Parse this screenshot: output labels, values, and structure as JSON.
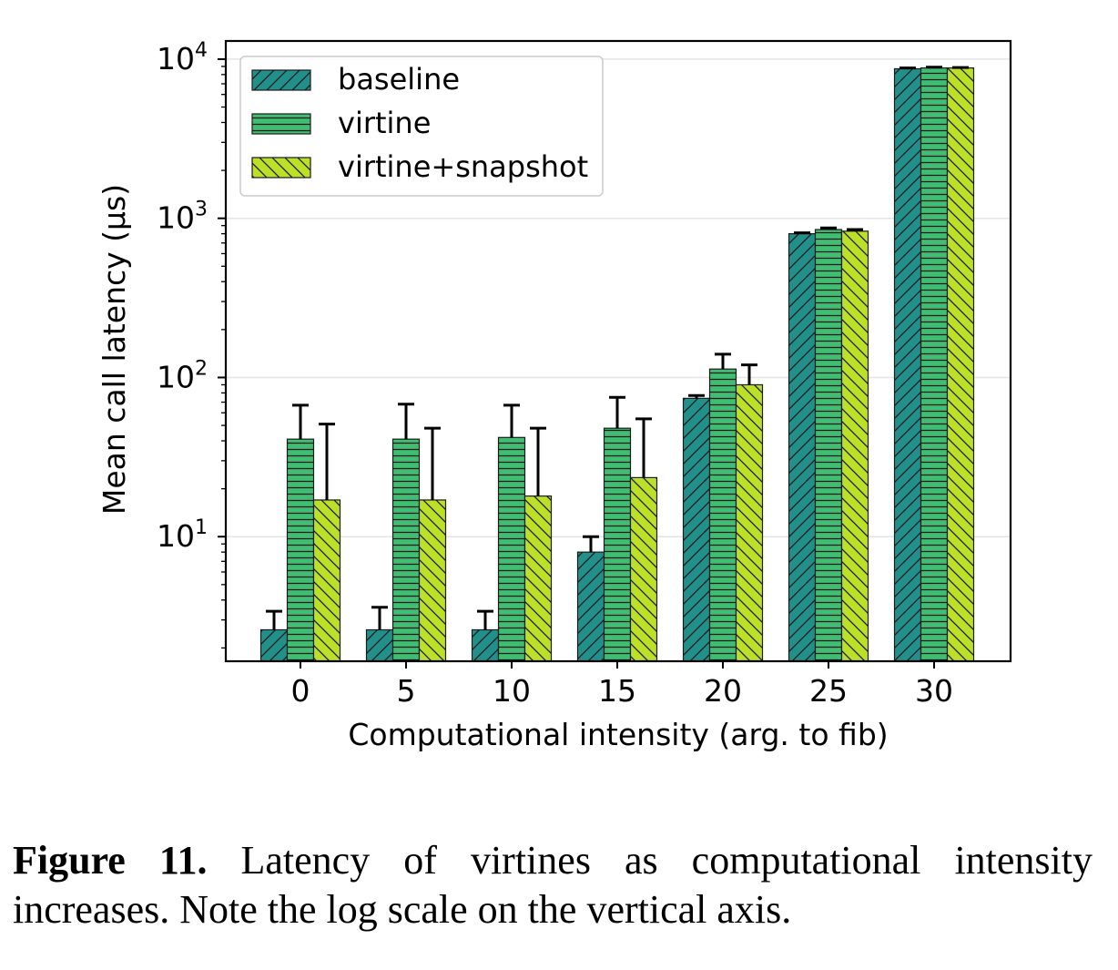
{
  "chart_data": {
    "type": "bar",
    "xlabel": "Computational intensity (arg. to fib)",
    "ylabel": "Mean call latency (μs)",
    "yscale": "log",
    "ylim": [
      1.65,
      13000
    ],
    "ytick_labels": [
      {
        "base": "10",
        "exp": "1",
        "value": 10
      },
      {
        "base": "10",
        "exp": "2",
        "value": 100
      },
      {
        "base": "10",
        "exp": "3",
        "value": 1000
      },
      {
        "base": "10",
        "exp": "4",
        "value": 10000
      }
    ],
    "grid": true,
    "legend_position": "top-left",
    "categories": [
      "0",
      "5",
      "10",
      "15",
      "20",
      "25",
      "30"
    ],
    "series": [
      {
        "name": "baseline",
        "color": "#22908a",
        "hatch": "forward-diagonal",
        "values": [
          2.6,
          2.6,
          2.6,
          8,
          74,
          800,
          8700
        ],
        "error_upper": [
          3.4,
          3.6,
          3.4,
          10,
          77,
          810,
          8800
        ]
      },
      {
        "name": "virtine",
        "color": "#40bd72",
        "hatch": "horizontal",
        "values": [
          41,
          41,
          42,
          48,
          113,
          850,
          8800
        ],
        "error_upper": [
          67,
          68,
          67,
          75,
          140,
          870,
          8900
        ]
      },
      {
        "name": "virtine+snapshot",
        "color": "#bcdf27",
        "hatch": "back-diagonal",
        "values": [
          17,
          17,
          18,
          23.5,
          90,
          830,
          8800
        ],
        "error_upper": [
          51,
          48,
          48,
          55,
          120,
          850,
          8850
        ]
      }
    ]
  },
  "caption": {
    "label": "Figure 11.",
    "text": " Latency of virtines as computational intensity increases. Note the log scale on the vertical axis."
  }
}
